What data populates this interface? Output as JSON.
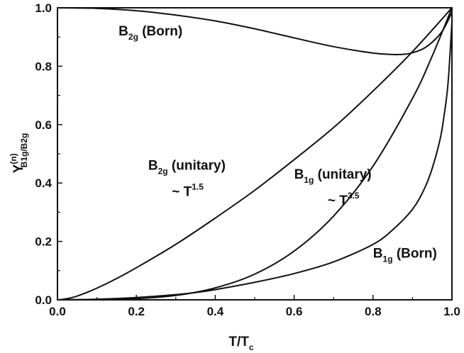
{
  "chart_data": {
    "type": "line",
    "xlabel": {
      "main": "T/T",
      "sub": "c"
    },
    "ylabel": {
      "main": "Y",
      "sup": "(n)",
      "sub": "B1g/B2g"
    },
    "xlim": [
      0.0,
      1.0
    ],
    "ylim": [
      0.0,
      1.0
    ],
    "x_ticks": [
      "0.0",
      "0.2",
      "0.4",
      "0.6",
      "0.8",
      "1.0"
    ],
    "y_ticks": [
      "0.0",
      "0.2",
      "0.4",
      "0.6",
      "0.8",
      "1.0"
    ],
    "grid": false,
    "legend": "none",
    "line_color": "#111111",
    "series": [
      {
        "name": "B2g (Born)",
        "x": [
          0.0,
          0.1,
          0.2,
          0.3,
          0.4,
          0.5,
          0.6,
          0.7,
          0.8,
          0.85,
          0.88,
          0.9,
          0.93,
          0.96,
          0.98,
          1.0
        ],
        "y": [
          1.0,
          0.998,
          0.99,
          0.975,
          0.955,
          0.928,
          0.897,
          0.867,
          0.845,
          0.84,
          0.841,
          0.846,
          0.862,
          0.895,
          0.93,
          0.985
        ]
      },
      {
        "name": "B2g (unitary)",
        "x": [
          0.0,
          0.02,
          0.05,
          0.1,
          0.15,
          0.2,
          0.3,
          0.4,
          0.5,
          0.6,
          0.7,
          0.8,
          0.9,
          1.0
        ],
        "y": [
          0.0,
          0.003,
          0.013,
          0.04,
          0.073,
          0.11,
          0.19,
          0.28,
          0.375,
          0.48,
          0.59,
          0.715,
          0.85,
          1.0
        ]
      },
      {
        "name": "B1g (unitary)",
        "x": [
          0.0,
          0.1,
          0.2,
          0.3,
          0.4,
          0.5,
          0.6,
          0.7,
          0.8,
          0.9,
          0.95,
          1.0
        ],
        "y": [
          0.0,
          0.001,
          0.004,
          0.015,
          0.041,
          0.088,
          0.167,
          0.287,
          0.458,
          0.69,
          0.835,
          1.0
        ]
      },
      {
        "name": "B1g (Born)",
        "x": [
          0.0,
          0.1,
          0.2,
          0.3,
          0.35,
          0.4,
          0.5,
          0.6,
          0.7,
          0.8,
          0.85,
          0.9,
          0.93,
          0.95,
          0.97,
          0.98,
          0.99,
          1.0
        ],
        "y": [
          0.0,
          0.002,
          0.008,
          0.018,
          0.025,
          0.035,
          0.06,
          0.09,
          0.13,
          0.19,
          0.24,
          0.31,
          0.38,
          0.45,
          0.55,
          0.63,
          0.74,
          0.95
        ]
      }
    ],
    "annotations": [
      {
        "main": "B",
        "sub": "2g",
        "rest": " (Born)",
        "x": 0.155,
        "y": 0.905
      },
      {
        "main": "B",
        "sub": "2g",
        "rest": " (unitary)",
        "x": 0.23,
        "y": 0.445
      },
      {
        "main": "~ T",
        "sup": "1.5",
        "x": 0.29,
        "y": 0.355
      },
      {
        "main": "B",
        "sub": "1g",
        "rest": " (unitary)",
        "x": 0.6,
        "y": 0.415
      },
      {
        "main": "~ T",
        "sup": "3.5",
        "x": 0.685,
        "y": 0.325
      },
      {
        "main": "B",
        "sub": "1g",
        "rest": " (Born)",
        "x": 0.8,
        "y": 0.145
      }
    ]
  }
}
